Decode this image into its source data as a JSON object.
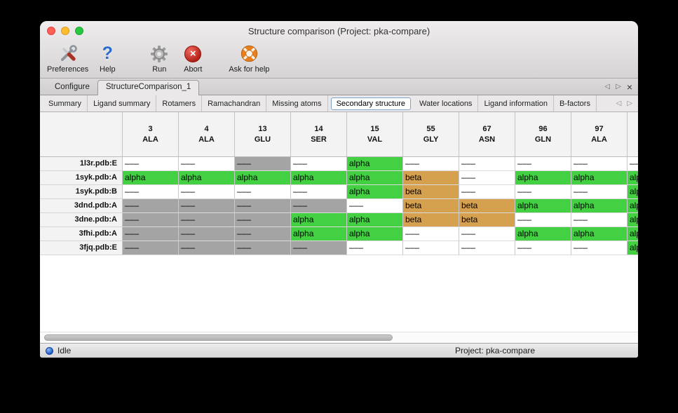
{
  "window": {
    "title": "Structure comparison (Project: pka-compare)"
  },
  "toolbar": {
    "preferences": "Preferences",
    "help": "Help",
    "run": "Run",
    "abort": "Abort",
    "ask_for_help": "Ask for help"
  },
  "icons": {
    "help_glyph": "?",
    "abort_glyph": "×",
    "nav_left": "◁",
    "nav_right": "▷",
    "close_glyph": "×",
    "preferences": "crossed-tools",
    "run": "gear",
    "ask_for_help": "life-ring",
    "status": "blue-sphere"
  },
  "tabs": {
    "primary": [
      {
        "label": "Configure",
        "active": false
      },
      {
        "label": "StructureComparison_1",
        "active": true
      }
    ],
    "secondary": [
      "Summary",
      "Ligand summary",
      "Rotamers",
      "Ramachandran",
      "Missing atoms",
      "Secondary structure",
      "Water locations",
      "Ligand information",
      "B-factors"
    ],
    "secondary_selected": "Secondary structure"
  },
  "table": {
    "corner_label": "",
    "columns": [
      {
        "num": "3",
        "res": "ALA"
      },
      {
        "num": "4",
        "res": "ALA"
      },
      {
        "num": "13",
        "res": "GLU"
      },
      {
        "num": "14",
        "res": "SER"
      },
      {
        "num": "15",
        "res": "VAL"
      },
      {
        "num": "55",
        "res": "GLY"
      },
      {
        "num": "67",
        "res": "ASN"
      },
      {
        "num": "96",
        "res": "GLN"
      },
      {
        "num": "97",
        "res": "ALA"
      },
      {
        "num": "",
        "res": ""
      }
    ],
    "type_colors": {
      "none": "#ffffff",
      "missing": "#a4a4a4",
      "alpha": "#43d143",
      "beta": "#d6a14e"
    },
    "rows": [
      {
        "label": "1l3r.pdb:E",
        "cells": [
          {
            "v": "–––",
            "t": "none"
          },
          {
            "v": "–––",
            "t": "none"
          },
          {
            "v": "–––",
            "t": "missing"
          },
          {
            "v": "–––",
            "t": "none"
          },
          {
            "v": "alpha",
            "t": "alpha"
          },
          {
            "v": "–––",
            "t": "none"
          },
          {
            "v": "–––",
            "t": "none"
          },
          {
            "v": "–––",
            "t": "none"
          },
          {
            "v": "–––",
            "t": "none"
          },
          {
            "v": "–––",
            "t": "none"
          }
        ]
      },
      {
        "label": "1syk.pdb:A",
        "cells": [
          {
            "v": "alpha",
            "t": "alpha"
          },
          {
            "v": "alpha",
            "t": "alpha"
          },
          {
            "v": "alpha",
            "t": "alpha"
          },
          {
            "v": "alpha",
            "t": "alpha"
          },
          {
            "v": "alpha",
            "t": "alpha"
          },
          {
            "v": "beta",
            "t": "beta"
          },
          {
            "v": "–––",
            "t": "none"
          },
          {
            "v": "alpha",
            "t": "alpha"
          },
          {
            "v": "alpha",
            "t": "alpha"
          },
          {
            "v": "alpha",
            "t": "alpha"
          }
        ]
      },
      {
        "label": "1syk.pdb:B",
        "cells": [
          {
            "v": "–––",
            "t": "none"
          },
          {
            "v": "–––",
            "t": "none"
          },
          {
            "v": "–––",
            "t": "none"
          },
          {
            "v": "–––",
            "t": "none"
          },
          {
            "v": "alpha",
            "t": "alpha"
          },
          {
            "v": "beta",
            "t": "beta"
          },
          {
            "v": "–––",
            "t": "none"
          },
          {
            "v": "–––",
            "t": "none"
          },
          {
            "v": "–––",
            "t": "none"
          },
          {
            "v": "alpha",
            "t": "alpha"
          }
        ]
      },
      {
        "label": "3dnd.pdb:A",
        "cells": [
          {
            "v": "–––",
            "t": "missing"
          },
          {
            "v": "–––",
            "t": "missing"
          },
          {
            "v": "–––",
            "t": "missing"
          },
          {
            "v": "–––",
            "t": "missing"
          },
          {
            "v": "–––",
            "t": "none"
          },
          {
            "v": "beta",
            "t": "beta"
          },
          {
            "v": "beta",
            "t": "beta"
          },
          {
            "v": "alpha",
            "t": "alpha"
          },
          {
            "v": "alpha",
            "t": "alpha"
          },
          {
            "v": "alpha",
            "t": "alpha"
          }
        ]
      },
      {
        "label": "3dne.pdb:A",
        "cells": [
          {
            "v": "–––",
            "t": "missing"
          },
          {
            "v": "–––",
            "t": "missing"
          },
          {
            "v": "–––",
            "t": "missing"
          },
          {
            "v": "alpha",
            "t": "alpha"
          },
          {
            "v": "alpha",
            "t": "alpha"
          },
          {
            "v": "beta",
            "t": "beta"
          },
          {
            "v": "beta",
            "t": "beta"
          },
          {
            "v": "–––",
            "t": "none"
          },
          {
            "v": "–––",
            "t": "none"
          },
          {
            "v": "alpha",
            "t": "alpha"
          }
        ]
      },
      {
        "label": "3fhi.pdb:A",
        "cells": [
          {
            "v": "–––",
            "t": "missing"
          },
          {
            "v": "–––",
            "t": "missing"
          },
          {
            "v": "–––",
            "t": "missing"
          },
          {
            "v": "alpha",
            "t": "alpha"
          },
          {
            "v": "alpha",
            "t": "alpha"
          },
          {
            "v": "–––",
            "t": "none"
          },
          {
            "v": "–––",
            "t": "none"
          },
          {
            "v": "alpha",
            "t": "alpha"
          },
          {
            "v": "alpha",
            "t": "alpha"
          },
          {
            "v": "alpha",
            "t": "alpha"
          }
        ]
      },
      {
        "label": "3fjq.pdb:E",
        "cells": [
          {
            "v": "–––",
            "t": "missing"
          },
          {
            "v": "–––",
            "t": "missing"
          },
          {
            "v": "–––",
            "t": "missing"
          },
          {
            "v": "–––",
            "t": "missing"
          },
          {
            "v": "–––",
            "t": "none"
          },
          {
            "v": "–––",
            "t": "none"
          },
          {
            "v": "–––",
            "t": "none"
          },
          {
            "v": "–––",
            "t": "none"
          },
          {
            "v": "–––",
            "t": "none"
          },
          {
            "v": "alpha",
            "t": "alpha"
          }
        ]
      }
    ]
  },
  "statusbar": {
    "status": "Idle",
    "project": "Project: pka-compare"
  }
}
